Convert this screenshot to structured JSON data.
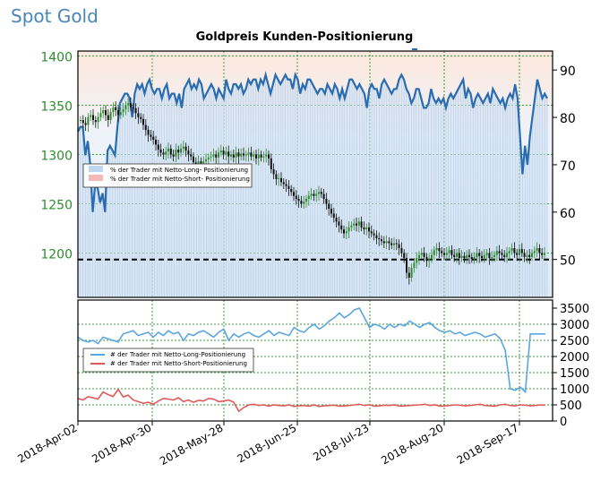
{
  "header": {
    "title": "Spot Gold"
  },
  "chart_data": [
    {
      "type": "line",
      "title": "Goldpreis Kunden-Positionierung",
      "x_ticks": [
        "2018-Apr-02",
        "2018-Apr-30",
        "2018-May-28",
        "2018-Jun-25",
        "2018-Jul-23",
        "2018-Aug-20",
        "2018-Sep-17"
      ],
      "left_axis": {
        "ticks": [
          1200,
          1250,
          1300,
          1350,
          1400
        ],
        "ylim": [
          1155,
          1405
        ],
        "color": "#2e8b2e"
      },
      "right_axis": {
        "ticks": [
          50,
          60,
          70,
          80,
          90
        ],
        "ylim": [
          42,
          94
        ]
      },
      "reference_line": {
        "value": 50,
        "style": "dashed",
        "color": "#000000"
      },
      "legend": {
        "placement": "left",
        "entries": [
          {
            "label": "% der Trader mit Netto-Long- Positionierung",
            "color": "#bcd6f0"
          },
          {
            "label": "% der Trader mit Netto-Short- Positionierung",
            "color": "#f4b8b8"
          }
        ]
      },
      "series": [
        {
          "name": "% der Trader mit Netto-Long- Positionierung",
          "axis": "right",
          "color": "#2a6cb0",
          "values": [
            77,
            78,
            78,
            72,
            75,
            70,
            60,
            66,
            65,
            62,
            64,
            60,
            73,
            74,
            73,
            72,
            78,
            83,
            84,
            85,
            85,
            84,
            80,
            85,
            87,
            86,
            87,
            85,
            87,
            88,
            86,
            85,
            86,
            86,
            84,
            86,
            87,
            84,
            85,
            85,
            83,
            85,
            82,
            86,
            87,
            88,
            86,
            87,
            86,
            88,
            87,
            84,
            85,
            86,
            87,
            86,
            84,
            86,
            85,
            84,
            88,
            86,
            85,
            87,
            87,
            86,
            87,
            85,
            86,
            88,
            87,
            88,
            88,
            86,
            88,
            87,
            89,
            87,
            85,
            87,
            89,
            88,
            87,
            88,
            89,
            88,
            88,
            86,
            89,
            88,
            85,
            87,
            86,
            88,
            88,
            87,
            86,
            85,
            86,
            86,
            85,
            87,
            86,
            85,
            87,
            86,
            84,
            86,
            84,
            86,
            88,
            88,
            87,
            86,
            87,
            86,
            85,
            82,
            86,
            87,
            86,
            86,
            84,
            87,
            88,
            87,
            86,
            85,
            86,
            86,
            88,
            89,
            88,
            86,
            85,
            83,
            84,
            86,
            86,
            84,
            82,
            82,
            83,
            86,
            84,
            83,
            84,
            83,
            84,
            82,
            84,
            85,
            84,
            85,
            86,
            87,
            88,
            84,
            86,
            85,
            82,
            84,
            85,
            84,
            83,
            84,
            85,
            83,
            86,
            85,
            84,
            83,
            84,
            82,
            84,
            85,
            84,
            87,
            84,
            76,
            68,
            74,
            70,
            76,
            80,
            84,
            88,
            86,
            84,
            85,
            84
          ]
        },
        {
          "name": "Spot Gold",
          "axis": "left",
          "type": "candlestick",
          "values": [
            1335,
            1332,
            1330,
            1338,
            1340,
            1335,
            1333,
            1338,
            1342,
            1345,
            1340,
            1335,
            1343,
            1348,
            1345,
            1340,
            1343,
            1346,
            1350,
            1352,
            1348,
            1347,
            1342,
            1338,
            1336,
            1330,
            1325,
            1320,
            1318,
            1315,
            1310,
            1305,
            1302,
            1300,
            1303,
            1306,
            1300,
            1298,
            1305,
            1302,
            1306,
            1308,
            1304,
            1300,
            1298,
            1292,
            1290,
            1293,
            1291,
            1293,
            1295,
            1297,
            1298,
            1300,
            1297,
            1302,
            1304,
            1300,
            1303,
            1298,
            1300,
            1297,
            1302,
            1298,
            1301,
            1299,
            1300,
            1302,
            1298,
            1300,
            1296,
            1300,
            1297,
            1298,
            1300,
            1296,
            1285,
            1280,
            1275,
            1276,
            1272,
            1270,
            1268,
            1265,
            1262,
            1258,
            1255,
            1253,
            1250,
            1252,
            1255,
            1258,
            1260,
            1258,
            1260,
            1262,
            1260,
            1255,
            1250,
            1245,
            1240,
            1236,
            1232,
            1228,
            1224,
            1220,
            1222,
            1226,
            1228,
            1230,
            1228,
            1232,
            1226,
            1224,
            1226,
            1222,
            1220,
            1218,
            1215,
            1214,
            1212,
            1210,
            1212,
            1210,
            1208,
            1210,
            1209,
            1205,
            1200,
            1195,
            1180,
            1175,
            1185,
            1190,
            1195,
            1198,
            1200,
            1196,
            1192,
            1194,
            1198,
            1203,
            1205,
            1202,
            1200,
            1198,
            1200,
            1203,
            1198,
            1196,
            1200,
            1195,
            1197,
            1195,
            1198,
            1196,
            1194,
            1196,
            1200,
            1197,
            1195,
            1198,
            1200,
            1195,
            1196,
            1198,
            1202,
            1200,
            1198,
            1196,
            1200,
            1202,
            1205,
            1200,
            1198,
            1204,
            1200,
            1196,
            1198,
            1196,
            1200,
            1202,
            1205,
            1200,
            1198,
            1200
          ]
        }
      ]
    },
    {
      "type": "line",
      "x_ticks": [
        "2018-Apr-02",
        "2018-Apr-30",
        "2018-May-28",
        "2018-Jun-25",
        "2018-Jul-23",
        "2018-Aug-20",
        "2018-Sep-17"
      ],
      "y_ticks": [
        0,
        500,
        1000,
        1500,
        2000,
        2500,
        3000,
        3500
      ],
      "ylim": [
        0,
        3750
      ],
      "legend": {
        "placement": "left",
        "entries": [
          {
            "label": "# der Trader mit Netto-Long-Positionierung",
            "color": "#5aa6e0"
          },
          {
            "label": "# der Trader mit Netto-Short-Positionierung",
            "color": "#e05a5a"
          }
        ]
      },
      "series": [
        {
          "name": "# der Trader mit Netto-Long-Positionierung",
          "color": "#5aa6e0",
          "values": [
            2600,
            2500,
            2450,
            2500,
            2400,
            2600,
            2550,
            2500,
            2450,
            2700,
            2750,
            2800,
            2650,
            2700,
            2750,
            2600,
            2750,
            2650,
            2800,
            2700,
            2750,
            2500,
            2700,
            2650,
            2750,
            2800,
            2700,
            2600,
            2750,
            2850,
            2500,
            2700,
            2600,
            2700,
            2750,
            2650,
            2600,
            2700,
            2800,
            2650,
            2750,
            2700,
            2650,
            2900,
            2800,
            2750,
            2900,
            3000,
            2850,
            2950,
            3100,
            3200,
            3350,
            3200,
            3300,
            3450,
            3500,
            3200,
            2900,
            3000,
            2950,
            2850,
            3000,
            2900,
            3000,
            2950,
            3100,
            3000,
            2900,
            3000,
            3050,
            2900,
            2800,
            2750,
            2800,
            2700,
            2750,
            2650,
            2700,
            2750,
            2700,
            2600,
            2650,
            2700,
            2550,
            2200,
            1000,
            950,
            1050,
            900,
            2700,
            2700,
            2700,
            2700
          ]
        },
        {
          "name": "# der Trader mit Netto-Short-Positionierung",
          "color": "#e05a5a",
          "values": [
            700,
            650,
            750,
            720,
            680,
            900,
            820,
            760,
            980,
            750,
            800,
            650,
            600,
            550,
            580,
            520,
            620,
            700,
            680,
            650,
            720,
            600,
            650,
            580,
            640,
            620,
            700,
            680,
            600,
            620,
            650,
            580,
            300,
            420,
            500,
            520,
            480,
            500,
            460,
            500,
            480,
            470,
            500,
            450,
            470,
            480,
            460,
            500,
            450,
            470,
            480,
            490,
            460,
            470,
            480,
            500,
            520,
            480,
            500,
            460,
            470,
            490,
            480,
            500,
            460,
            470,
            480,
            490,
            500,
            520,
            480,
            500,
            460,
            470,
            480,
            500,
            490,
            470,
            480,
            500,
            520,
            480,
            470,
            460,
            500,
            520,
            480,
            470,
            500,
            490,
            470,
            480,
            500,
            490
          ]
        }
      ]
    }
  ]
}
